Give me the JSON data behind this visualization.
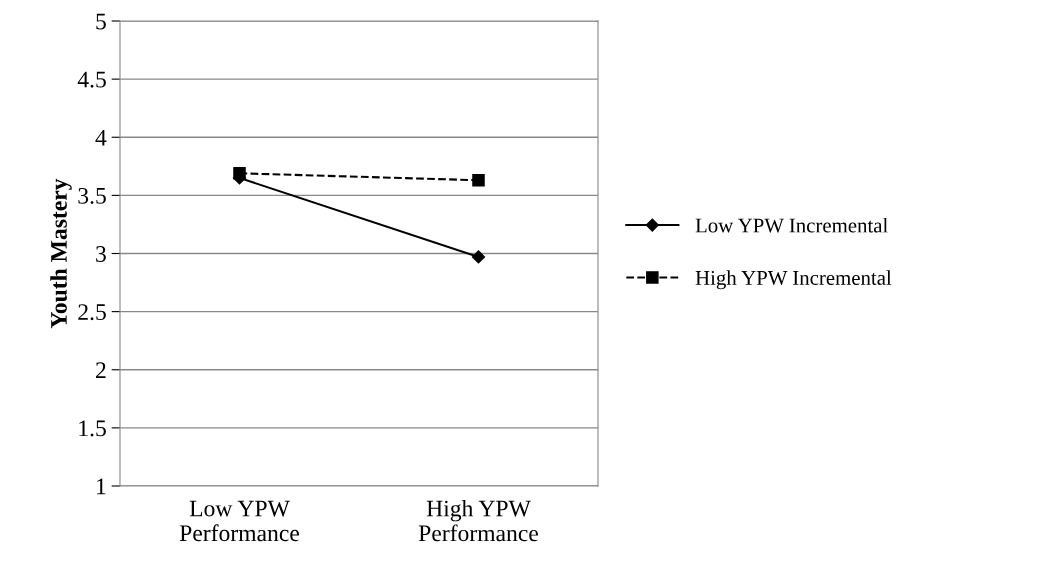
{
  "chart_data": {
    "type": "line",
    "ylabel": "Youth Mastery",
    "categories": [
      "Low YPW\nPerformance",
      "High YPW\nPerformance"
    ],
    "series": [
      {
        "name": "Low YPW Incremental",
        "color": "#000000",
        "values": [
          3.65,
          2.97
        ],
        "marker": "diamond",
        "line_style": "solid"
      },
      {
        "name": "High YPW Incremental",
        "color": "#000000",
        "values": [
          3.69,
          3.63
        ],
        "marker": "square",
        "line_style": "dashed"
      }
    ],
    "ylim": [
      1,
      5
    ],
    "yticks": [
      1,
      1.5,
      2,
      2.5,
      3,
      3.5,
      4,
      4.5,
      5
    ],
    "grid": "y",
    "legend": "right"
  }
}
